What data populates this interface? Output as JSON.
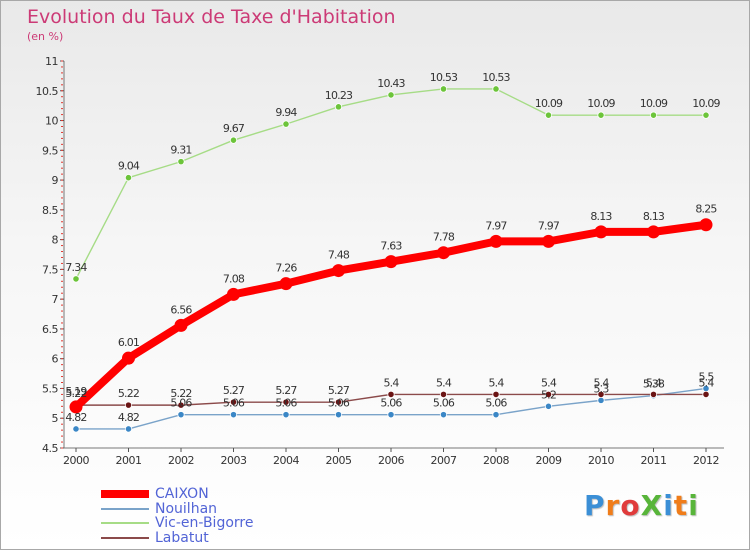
{
  "header": {
    "title": "Evolution du Taux de Taxe d'Habitation",
    "subtitle": "(en %)"
  },
  "logo": {
    "text": "ProXiti"
  },
  "chart_data": {
    "type": "line",
    "title": "Evolution du Taux de Taxe d'Habitation",
    "subtitle": "(en %)",
    "x": [
      "2000",
      "2001",
      "2002",
      "2003",
      "2004",
      "2005",
      "2006",
      "2007",
      "2008",
      "2009",
      "2010",
      "2011",
      "2012"
    ],
    "ylim": [
      4.5,
      11
    ],
    "yticks": [
      4.5,
      5,
      5.5,
      6,
      6.5,
      7,
      7.5,
      8,
      8.5,
      9,
      9.5,
      10,
      10.5,
      11
    ],
    "ytick_labels": [
      "4.5",
      "5",
      "5.5",
      "6",
      "6.5",
      "7",
      "7.5",
      "8",
      "8.5",
      "9",
      "9.5",
      "10",
      "10.5",
      "11"
    ],
    "grid": false,
    "legend_position": "bottom-left",
    "series": [
      {
        "name": "CAIXON",
        "color": "#ff0000",
        "marker": "#ff0000",
        "values": [
          5.19,
          6.01,
          6.56,
          7.08,
          7.26,
          7.48,
          7.63,
          7.78,
          7.97,
          7.97,
          8.13,
          8.13,
          8.25
        ],
        "labels": [
          "5.19",
          "6.01",
          "6.56",
          "7.08",
          "7.26",
          "7.48",
          "7.63",
          "7.78",
          "7.97",
          "7.97",
          "8.13",
          "8.13",
          "8.25"
        ]
      },
      {
        "name": "Nouilhan",
        "color": "#7aa3c9",
        "marker": "#3b87c6",
        "values": [
          4.82,
          4.82,
          5.06,
          5.06,
          5.06,
          5.06,
          5.06,
          5.06,
          5.06,
          5.2,
          5.3,
          5.38,
          5.5
        ],
        "labels": [
          "4.82",
          "4.82",
          "5.06",
          "5.06",
          "5.06",
          "5.06",
          "5.06",
          "5.06",
          "5.06",
          "5.2",
          "5.3",
          "5.38",
          "5.5"
        ]
      },
      {
        "name": "Vic-en-Bigorre",
        "color": "#a6dc86",
        "marker": "#6cc43a",
        "values": [
          7.34,
          9.04,
          9.31,
          9.67,
          9.94,
          10.23,
          10.43,
          10.53,
          10.53,
          10.09,
          10.09,
          10.09,
          10.09
        ],
        "labels": [
          "7.34",
          "9.04",
          "9.31",
          "9.67",
          "9.94",
          "10.23",
          "10.43",
          "10.53",
          "10.53",
          "10.09",
          "10.09",
          "10.09",
          "10.09"
        ]
      },
      {
        "name": "Labatut",
        "color": "#8b4a4a",
        "marker": "#6b1414",
        "values": [
          5.22,
          5.22,
          5.22,
          5.27,
          5.27,
          5.27,
          5.4,
          5.4,
          5.4,
          5.4,
          5.4,
          5.4,
          5.4
        ],
        "labels": [
          "5.22",
          "5.22",
          "5.22",
          "5.27",
          "5.27",
          "5.27",
          "5.4",
          "5.4",
          "5.4",
          "5.4",
          "5.4",
          "5.4",
          "5.4"
        ]
      }
    ]
  }
}
